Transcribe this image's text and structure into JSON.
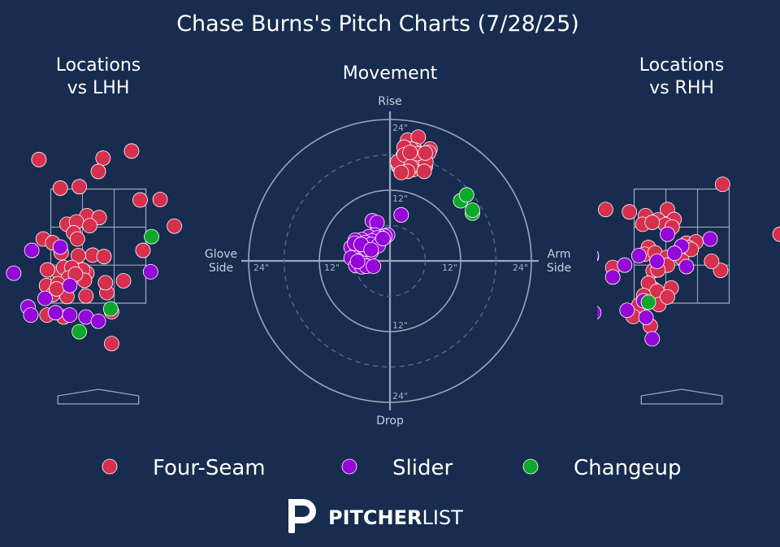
{
  "title": "Chase Burns's Pitch Charts (7/28/25)",
  "colors": {
    "background": "#172c4e",
    "four_seam": "#d5304e",
    "slider": "#9407d8",
    "changeup": "#0ea82c",
    "grid": "#9aa7bc"
  },
  "logo": {
    "text_bold": "PITCHER",
    "text_light": "LIST"
  },
  "chart_data": [
    {
      "type": "scatter",
      "title": "Locations\nvs LHH",
      "unit": "feet (catcher view)",
      "xlim": [
        -2.05,
        2.05
      ],
      "ylim": [
        0.5,
        5.1
      ],
      "series": [
        {
          "name": "Four-Seam",
          "color": "#d5304e",
          "points": [
            [
              -1.25,
              4.52
            ],
            [
              0.1,
              4.55
            ],
            [
              0.7,
              4.7
            ],
            [
              0.0,
              4.27
            ],
            [
              -0.8,
              3.92
            ],
            [
              -0.4,
              3.95
            ],
            [
              0.88,
              3.67
            ],
            [
              1.3,
              3.68
            ],
            [
              -0.24,
              3.34
            ],
            [
              0.02,
              3.3
            ],
            [
              -0.66,
              3.16
            ],
            [
              -0.46,
              3.21
            ],
            [
              -0.18,
              3.13
            ],
            [
              1.6,
              3.12
            ],
            [
              -0.52,
              2.98
            ],
            [
              -0.44,
              2.85
            ],
            [
              -1.16,
              2.85
            ],
            [
              -0.96,
              2.77
            ],
            [
              -0.78,
              2.56
            ],
            [
              -0.12,
              2.51
            ],
            [
              0.12,
              2.48
            ],
            [
              0.94,
              2.61
            ],
            [
              -0.82,
              2.13
            ],
            [
              -0.24,
              2.13
            ],
            [
              -1.07,
              2.2
            ],
            [
              -0.73,
              2.25
            ],
            [
              -1.09,
              1.87
            ],
            [
              -0.42,
              2.5
            ],
            [
              -0.33,
              2.2
            ],
            [
              -0.66,
              1.87
            ],
            [
              -0.56,
              2.25
            ],
            [
              -0.29,
              1.98
            ],
            [
              0.18,
              1.72
            ],
            [
              -0.63,
              2.03
            ],
            [
              -0.85,
              1.91
            ],
            [
              -0.96,
              1.68
            ],
            [
              -0.66,
              1.64
            ],
            [
              -0.26,
              1.65
            ],
            [
              0.15,
              1.93
            ],
            [
              0.53,
              1.97
            ],
            [
              -0.48,
              2.11
            ],
            [
              -0.88,
              1.8
            ],
            [
              -1.08,
              1.25
            ],
            [
              -0.73,
              1.21
            ],
            [
              0.28,
              0.65
            ],
            [
              0.28,
              1.32
            ]
          ]
        },
        {
          "name": "Slider",
          "color": "#9407d8",
          "points": [
            [
              -1.78,
              2.13
            ],
            [
              -1.4,
              2.61
            ],
            [
              -0.8,
              2.68
            ],
            [
              1.1,
              2.16
            ],
            [
              -0.6,
              1.87
            ],
            [
              -1.12,
              1.6
            ],
            [
              -1.48,
              1.42
            ],
            [
              -0.9,
              1.3
            ],
            [
              -1.42,
              1.25
            ],
            [
              -0.6,
              1.25
            ],
            [
              -0.26,
              1.21
            ],
            [
              0.0,
              1.12
            ]
          ]
        },
        {
          "name": "Changeup",
          "color": "#0ea82c",
          "points": [
            [
              1.12,
              2.9
            ],
            [
              0.26,
              1.38
            ],
            [
              -0.4,
              0.9
            ]
          ]
        }
      ]
    },
    {
      "type": "scatter",
      "title": "Movement",
      "xlabel_left": "Glove\nSide",
      "xlabel_right": "Arm\nSide",
      "ylabel_top": "Rise",
      "ylabel_bottom": "Drop",
      "unit": "inches",
      "rings": [
        12,
        24
      ],
      "dashed_rings": [
        6,
        18
      ],
      "ring_labels": [
        "12\"",
        "24\""
      ],
      "series": [
        {
          "name": "Four-Seam",
          "color": "#d5304e",
          "points": [
            [
              3.0,
              20.5
            ],
            [
              4.8,
              21.0
            ],
            [
              2.8,
              18.5
            ],
            [
              3.5,
              17.5
            ],
            [
              4.3,
              18.8
            ],
            [
              5.0,
              18.2
            ],
            [
              2.0,
              17.0
            ],
            [
              1.6,
              16.6
            ],
            [
              2.2,
              17.8
            ],
            [
              3.6,
              19.0
            ],
            [
              6.8,
              19.0
            ],
            [
              6.6,
              18.4
            ],
            [
              4.8,
              17.2
            ],
            [
              5.8,
              17.4
            ],
            [
              2.8,
              17.8
            ],
            [
              2.8,
              16.9
            ],
            [
              1.4,
              16.1
            ],
            [
              3.0,
              16.2
            ],
            [
              4.8,
              16.0
            ],
            [
              5.8,
              16.5
            ],
            [
              3.2,
              16.4
            ],
            [
              1.7,
              15.8
            ],
            [
              3.9,
              15.5
            ],
            [
              6.0,
              16.0
            ],
            [
              4.1,
              16.1
            ],
            [
              1.3,
              16.8
            ],
            [
              3.8,
              17.2
            ],
            [
              5.2,
              17.5
            ],
            [
              2.4,
              19.3
            ],
            [
              2.4,
              18.0
            ],
            [
              6.1,
              16.8
            ],
            [
              3.5,
              16.0
            ],
            [
              4.6,
              18.2
            ],
            [
              5.8,
              15.2
            ],
            [
              3.0,
              15.2
            ],
            [
              1.9,
              15.0
            ],
            [
              3.4,
              18.4
            ],
            [
              6.0,
              18.3
            ]
          ]
        },
        {
          "name": "Slider",
          "color": "#9407d8",
          "points": [
            [
              -3.0,
              6.8
            ],
            [
              -2.2,
              6.5
            ],
            [
              1.9,
              7.8
            ],
            [
              -0.4,
              4.4
            ],
            [
              -0.9,
              4.2
            ],
            [
              -1.7,
              4.1
            ],
            [
              -2.6,
              4.4
            ],
            [
              -3.6,
              4.1
            ],
            [
              -4.8,
              3.6
            ],
            [
              -5.9,
              3.5
            ],
            [
              -6.6,
              2.3
            ],
            [
              -5.3,
              2.2
            ],
            [
              -3.6,
              2.5
            ],
            [
              -2.6,
              3.2
            ],
            [
              -2.2,
              3.9
            ],
            [
              -3.0,
              3.4
            ],
            [
              -4.2,
              3.1
            ],
            [
              -5.6,
              1.6
            ],
            [
              -5.0,
              1.5
            ],
            [
              -4.4,
              2.2
            ],
            [
              -3.2,
              2.8
            ],
            [
              -6.6,
              0.5
            ],
            [
              -5.2,
              0.0
            ],
            [
              -4.2,
              -0.2
            ],
            [
              -5.8,
              -0.8
            ],
            [
              -4.8,
              -1.0
            ],
            [
              -4.0,
              -0.9
            ],
            [
              -2.8,
              -0.9
            ],
            [
              -5.5,
              -0.1
            ],
            [
              -3.2,
              1.5
            ],
            [
              -2.0,
              2.6
            ],
            [
              -4.0,
              2.0
            ],
            [
              -6.0,
              3.0
            ],
            [
              -4.9,
              2.8
            ],
            [
              -3.2,
              1.9
            ],
            [
              -1.2,
              3.8
            ]
          ]
        },
        {
          "name": "Changeup",
          "color": "#0ea82c",
          "points": [
            [
              12.0,
              10.2
            ],
            [
              13.0,
              11.2
            ],
            [
              14.0,
              8.1
            ],
            [
              14.0,
              8.6
            ]
          ]
        }
      ]
    },
    {
      "type": "scatter",
      "title": "Locations\nvs RHH",
      "unit": "feet (catcher view)",
      "xlim": [
        -2.05,
        2.05
      ],
      "ylim": [
        0.5,
        5.1
      ],
      "series": [
        {
          "name": "Four-Seam",
          "color": "#d5304e",
          "points": [
            [
              0.86,
              4.0
            ],
            [
              -1.6,
              3.47
            ],
            [
              -1.1,
              3.42
            ],
            [
              -0.3,
              3.47
            ],
            [
              -0.76,
              3.34
            ],
            [
              -0.16,
              3.26
            ],
            [
              -0.5,
              3.25
            ],
            [
              -0.34,
              3.15
            ],
            [
              -0.82,
              3.16
            ],
            [
              -0.62,
              3.2
            ],
            [
              -0.2,
              3.1
            ],
            [
              0.1,
              2.76
            ],
            [
              0.3,
              2.79
            ],
            [
              -0.7,
              2.67
            ],
            [
              -0.78,
              2.53
            ],
            [
              -0.56,
              2.56
            ],
            [
              -0.32,
              2.46
            ],
            [
              -0.6,
              2.18
            ],
            [
              -1.45,
              2.25
            ],
            [
              0.0,
              2.45
            ],
            [
              0.14,
              2.67
            ],
            [
              0.82,
              2.19
            ],
            [
              0.2,
              2.63
            ],
            [
              0.63,
              2.38
            ],
            [
              -1.9,
              2.48
            ],
            [
              -0.6,
              1.8
            ],
            [
              -0.3,
              2.3
            ],
            [
              -0.7,
              1.92
            ],
            [
              -0.52,
              1.75
            ],
            [
              -0.8,
              1.66
            ],
            [
              -0.66,
              1.02
            ],
            [
              -0.48,
              1.47
            ],
            [
              -0.22,
              1.82
            ],
            [
              -0.5,
              2.2
            ],
            [
              2.07,
              2.95
            ],
            [
              -0.3,
              1.63
            ],
            [
              -0.9,
              1.46
            ],
            [
              -1.02,
              1.22
            ]
          ]
        },
        {
          "name": "Slider",
          "color": "#9407d8",
          "points": [
            [
              -0.3,
              2.95
            ],
            [
              0.0,
              2.7
            ],
            [
              0.6,
              2.85
            ],
            [
              -0.15,
              2.55
            ],
            [
              -1.2,
              2.3
            ],
            [
              -0.9,
              2.5
            ],
            [
              -1.45,
              2.05
            ],
            [
              -0.8,
              1.55
            ],
            [
              -1.9,
              2.5
            ],
            [
              -0.52,
              2.38
            ],
            [
              0.1,
              2.27
            ],
            [
              -1.85,
              1.3
            ],
            [
              -1.15,
              1.35
            ],
            [
              -0.75,
              1.2
            ],
            [
              -0.62,
              0.75
            ],
            [
              -2.05,
              1.0
            ]
          ]
        },
        {
          "name": "Changeup",
          "color": "#0ea82c",
          "points": [
            [
              -0.7,
              1.52
            ]
          ]
        }
      ]
    }
  ],
  "legend": [
    {
      "label": "Four-Seam",
      "color": "#d5304e"
    },
    {
      "label": "Slider",
      "color": "#9407d8"
    },
    {
      "label": "Changeup",
      "color": "#0ea82c"
    }
  ]
}
